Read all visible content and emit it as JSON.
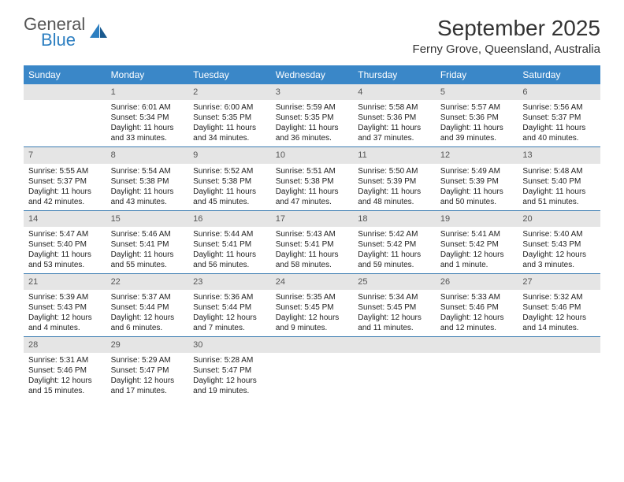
{
  "brand": {
    "top": "General",
    "bottom": "Blue"
  },
  "title": "September 2025",
  "location": "Ferny Grove, Queensland, Australia",
  "colors": {
    "header_bg": "#3a87c8",
    "header_text": "#ffffff",
    "daynum_bg": "#e5e5e5",
    "divider": "#3a7bb0",
    "brand_gray": "#555555",
    "brand_blue": "#2d7fc1"
  },
  "weekdays": [
    "Sunday",
    "Monday",
    "Tuesday",
    "Wednesday",
    "Thursday",
    "Friday",
    "Saturday"
  ],
  "weeks": [
    [
      {
        "num": "",
        "lines": []
      },
      {
        "num": "1",
        "lines": [
          "Sunrise: 6:01 AM",
          "Sunset: 5:34 PM",
          "Daylight: 11 hours and 33 minutes."
        ]
      },
      {
        "num": "2",
        "lines": [
          "Sunrise: 6:00 AM",
          "Sunset: 5:35 PM",
          "Daylight: 11 hours and 34 minutes."
        ]
      },
      {
        "num": "3",
        "lines": [
          "Sunrise: 5:59 AM",
          "Sunset: 5:35 PM",
          "Daylight: 11 hours and 36 minutes."
        ]
      },
      {
        "num": "4",
        "lines": [
          "Sunrise: 5:58 AM",
          "Sunset: 5:36 PM",
          "Daylight: 11 hours and 37 minutes."
        ]
      },
      {
        "num": "5",
        "lines": [
          "Sunrise: 5:57 AM",
          "Sunset: 5:36 PM",
          "Daylight: 11 hours and 39 minutes."
        ]
      },
      {
        "num": "6",
        "lines": [
          "Sunrise: 5:56 AM",
          "Sunset: 5:37 PM",
          "Daylight: 11 hours and 40 minutes."
        ]
      }
    ],
    [
      {
        "num": "7",
        "lines": [
          "Sunrise: 5:55 AM",
          "Sunset: 5:37 PM",
          "Daylight: 11 hours and 42 minutes."
        ]
      },
      {
        "num": "8",
        "lines": [
          "Sunrise: 5:54 AM",
          "Sunset: 5:38 PM",
          "Daylight: 11 hours and 43 minutes."
        ]
      },
      {
        "num": "9",
        "lines": [
          "Sunrise: 5:52 AM",
          "Sunset: 5:38 PM",
          "Daylight: 11 hours and 45 minutes."
        ]
      },
      {
        "num": "10",
        "lines": [
          "Sunrise: 5:51 AM",
          "Sunset: 5:38 PM",
          "Daylight: 11 hours and 47 minutes."
        ]
      },
      {
        "num": "11",
        "lines": [
          "Sunrise: 5:50 AM",
          "Sunset: 5:39 PM",
          "Daylight: 11 hours and 48 minutes."
        ]
      },
      {
        "num": "12",
        "lines": [
          "Sunrise: 5:49 AM",
          "Sunset: 5:39 PM",
          "Daylight: 11 hours and 50 minutes."
        ]
      },
      {
        "num": "13",
        "lines": [
          "Sunrise: 5:48 AM",
          "Sunset: 5:40 PM",
          "Daylight: 11 hours and 51 minutes."
        ]
      }
    ],
    [
      {
        "num": "14",
        "lines": [
          "Sunrise: 5:47 AM",
          "Sunset: 5:40 PM",
          "Daylight: 11 hours and 53 minutes."
        ]
      },
      {
        "num": "15",
        "lines": [
          "Sunrise: 5:46 AM",
          "Sunset: 5:41 PM",
          "Daylight: 11 hours and 55 minutes."
        ]
      },
      {
        "num": "16",
        "lines": [
          "Sunrise: 5:44 AM",
          "Sunset: 5:41 PM",
          "Daylight: 11 hours and 56 minutes."
        ]
      },
      {
        "num": "17",
        "lines": [
          "Sunrise: 5:43 AM",
          "Sunset: 5:41 PM",
          "Daylight: 11 hours and 58 minutes."
        ]
      },
      {
        "num": "18",
        "lines": [
          "Sunrise: 5:42 AM",
          "Sunset: 5:42 PM",
          "Daylight: 11 hours and 59 minutes."
        ]
      },
      {
        "num": "19",
        "lines": [
          "Sunrise: 5:41 AM",
          "Sunset: 5:42 PM",
          "Daylight: 12 hours and 1 minute."
        ]
      },
      {
        "num": "20",
        "lines": [
          "Sunrise: 5:40 AM",
          "Sunset: 5:43 PM",
          "Daylight: 12 hours and 3 minutes."
        ]
      }
    ],
    [
      {
        "num": "21",
        "lines": [
          "Sunrise: 5:39 AM",
          "Sunset: 5:43 PM",
          "Daylight: 12 hours and 4 minutes."
        ]
      },
      {
        "num": "22",
        "lines": [
          "Sunrise: 5:37 AM",
          "Sunset: 5:44 PM",
          "Daylight: 12 hours and 6 minutes."
        ]
      },
      {
        "num": "23",
        "lines": [
          "Sunrise: 5:36 AM",
          "Sunset: 5:44 PM",
          "Daylight: 12 hours and 7 minutes."
        ]
      },
      {
        "num": "24",
        "lines": [
          "Sunrise: 5:35 AM",
          "Sunset: 5:45 PM",
          "Daylight: 12 hours and 9 minutes."
        ]
      },
      {
        "num": "25",
        "lines": [
          "Sunrise: 5:34 AM",
          "Sunset: 5:45 PM",
          "Daylight: 12 hours and 11 minutes."
        ]
      },
      {
        "num": "26",
        "lines": [
          "Sunrise: 5:33 AM",
          "Sunset: 5:46 PM",
          "Daylight: 12 hours and 12 minutes."
        ]
      },
      {
        "num": "27",
        "lines": [
          "Sunrise: 5:32 AM",
          "Sunset: 5:46 PM",
          "Daylight: 12 hours and 14 minutes."
        ]
      }
    ],
    [
      {
        "num": "28",
        "lines": [
          "Sunrise: 5:31 AM",
          "Sunset: 5:46 PM",
          "Daylight: 12 hours and 15 minutes."
        ]
      },
      {
        "num": "29",
        "lines": [
          "Sunrise: 5:29 AM",
          "Sunset: 5:47 PM",
          "Daylight: 12 hours and 17 minutes."
        ]
      },
      {
        "num": "30",
        "lines": [
          "Sunrise: 5:28 AM",
          "Sunset: 5:47 PM",
          "Daylight: 12 hours and 19 minutes."
        ]
      },
      {
        "num": "",
        "lines": []
      },
      {
        "num": "",
        "lines": []
      },
      {
        "num": "",
        "lines": []
      },
      {
        "num": "",
        "lines": []
      }
    ]
  ]
}
